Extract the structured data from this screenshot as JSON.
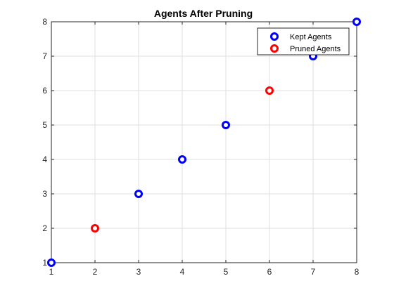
{
  "chart_data": {
    "type": "scatter",
    "title": "Agents After Pruning",
    "xlabel": "",
    "ylabel": "",
    "xlim": [
      1,
      8
    ],
    "ylim": [
      1,
      8
    ],
    "xticks": [
      "1",
      "2",
      "3",
      "4",
      "5",
      "6",
      "7",
      "8"
    ],
    "yticks": [
      "1",
      "2",
      "3",
      "4",
      "5",
      "6",
      "7",
      "8"
    ],
    "grid": true,
    "legend_position": "top-right",
    "series": [
      {
        "name": "Kept Agents",
        "color": "#0000ff",
        "points": [
          [
            1,
            1
          ],
          [
            3,
            3
          ],
          [
            4,
            4
          ],
          [
            5,
            5
          ],
          [
            7,
            7
          ],
          [
            8,
            8
          ]
        ]
      },
      {
        "name": "Pruned Agents",
        "color": "#ff0000",
        "points": [
          [
            2,
            2
          ],
          [
            6,
            6
          ]
        ]
      }
    ]
  }
}
